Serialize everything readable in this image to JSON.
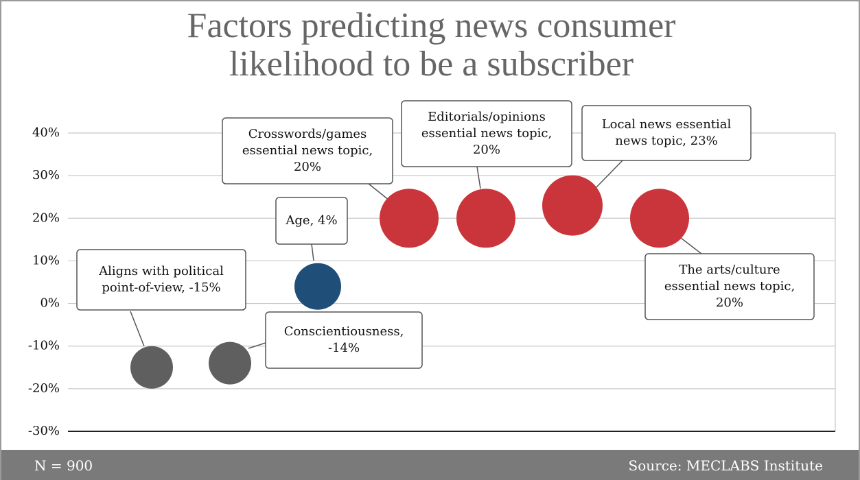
{
  "chart_data": {
    "type": "scatter",
    "title": "Factors predicting news consumer likelihood to be a subscriber",
    "series": [
      {
        "color": "#5f5f5f",
        "values": [
          -15,
          -14
        ],
        "value_labels": [
          "Aligns with political point-of-view, -15%",
          "Conscientiousness, -14%"
        ]
      },
      {
        "color": "#1f4e79",
        "values": [
          4
        ],
        "value_labels": [
          "Age, 4%"
        ]
      },
      {
        "color": "#c9353a",
        "values": [
          20,
          20,
          23,
          20
        ],
        "value_labels": [
          "Crosswords/games essential news topic, 20%",
          "Editorials/opinions essential news topic, 20%",
          "Local news essential news topic, 23%",
          "The arts/culture essential news topic, 20%"
        ]
      }
    ],
    "ylim": [
      -30,
      40
    ],
    "yticks": [
      {
        "value": -30,
        "label": "-30%"
      },
      {
        "value": -20,
        "label": "-20%"
      },
      {
        "value": -10,
        "label": "-10%"
      },
      {
        "value": 0,
        "label": "0%"
      },
      {
        "value": 10,
        "label": "10%"
      },
      {
        "value": 20,
        "label": "20%"
      },
      {
        "value": 30,
        "label": "30%"
      },
      {
        "value": 40,
        "label": "40%"
      }
    ],
    "grid": true
  },
  "footer": {
    "note": "N = 900",
    "source": "Source: MECLABS Institute"
  }
}
